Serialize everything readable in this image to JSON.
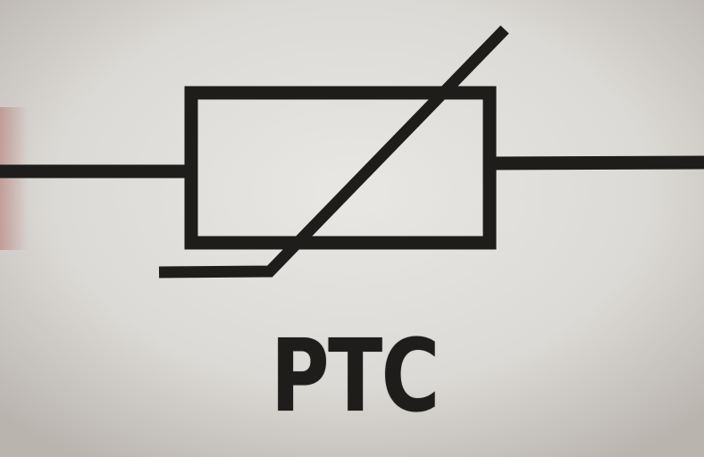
{
  "component_label": "PTC",
  "colors": {
    "ink": "#1f1d1b",
    "background": "#dcdad6",
    "background_highlight": "#e9e7e3",
    "vignette_edge": "#b9b4ae"
  }
}
